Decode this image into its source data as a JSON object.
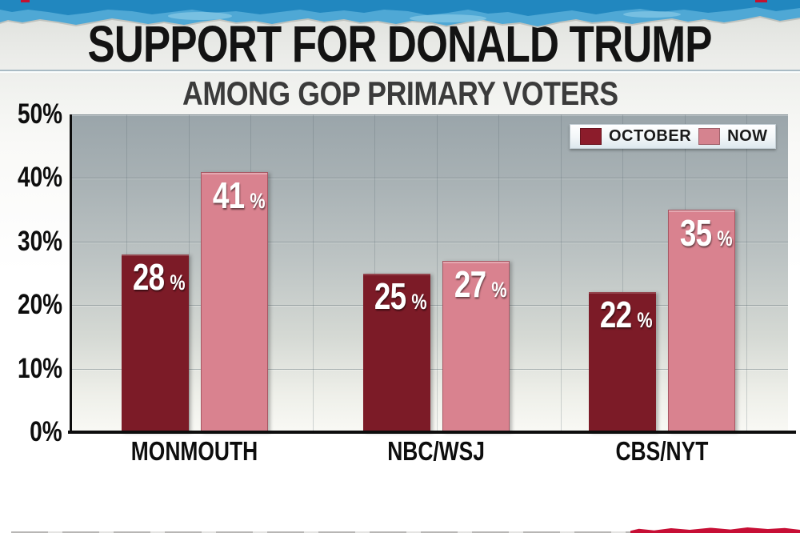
{
  "page": {
    "title": "SUPPORT FOR DONALD TRUMP",
    "subtitle": "AMONG GOP PRIMARY VOTERS"
  },
  "chart_data": {
    "type": "bar",
    "title": "SUPPORT FOR DONALD TRUMP",
    "subtitle": "AMONG GOP PRIMARY VOTERS",
    "categories": [
      "MONMOUTH",
      "NBC/WSJ",
      "CBS/NYT"
    ],
    "series": [
      {
        "name": "OCTOBER",
        "color": "#7C1B27",
        "legend_color": "#8C1C2B",
        "values": [
          28,
          25,
          22
        ]
      },
      {
        "name": "NOW",
        "color": "#D9828F",
        "legend_color": "#D5838F",
        "values": [
          41,
          27,
          35
        ]
      }
    ],
    "value_suffix": "%",
    "xlabel": "",
    "ylabel": "",
    "ylim": [
      0,
      50
    ],
    "yticks": [
      {
        "value": 0,
        "label": "0%"
      },
      {
        "value": 10,
        "label": "10%"
      },
      {
        "value": 20,
        "label": "20%"
      },
      {
        "value": 30,
        "label": "30%"
      },
      {
        "value": 40,
        "label": "40%"
      },
      {
        "value": 50,
        "label": "50%"
      }
    ],
    "grid": true,
    "legend_position": "top-right"
  },
  "colors": {
    "bar_october": "#7C1B27",
    "bar_now": "#D9828F",
    "axis": "#0D0D0D",
    "title_text": "#131313",
    "subtitle_text": "#3B3B3B",
    "torn_edge_blue_dark": "#2187BF",
    "torn_edge_blue_light": "#4FA8D5",
    "torn_edge_blue_pale": "#7FC4E3",
    "bottom_artifact_red": "#C70F35"
  }
}
